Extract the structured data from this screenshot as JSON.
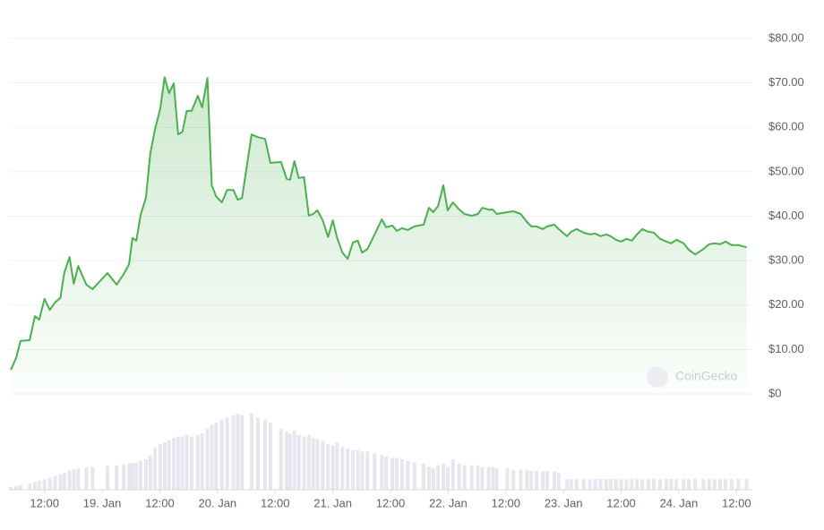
{
  "chart_data": {
    "type": "area",
    "watermark": "CoinGecko",
    "x": [
      5.0,
      6.1,
      7.0,
      8.9,
      10.0,
      10.9,
      12.0,
      13.1,
      14.2,
      15.3,
      16.1,
      17.2,
      18.1,
      19.0,
      20.7,
      22.0,
      25.1,
      27.0,
      28.5,
      29.6,
      30.3,
      31.1,
      32.0,
      33.1,
      34.0,
      35.0,
      36.1,
      37.0,
      37.9,
      38.9,
      39.8,
      40.7,
      41.6,
      42.6,
      43.9,
      44.8,
      45.9,
      46.8,
      47.7,
      48.9,
      50.0,
      51.3,
      52.2,
      53.1,
      55.1,
      56.4,
      57.9,
      59.0,
      61.2,
      62.4,
      63.1,
      64.0,
      64.9,
      66.0,
      67.0,
      67.9,
      68.8,
      69.9,
      71.0,
      72.0,
      72.9,
      74.0,
      75.1,
      76.2,
      77.2,
      78.1,
      79.2,
      80.7,
      82.2,
      83.1,
      84.4,
      85.3,
      86.4,
      87.6,
      89.0,
      90.9,
      92.0,
      92.9,
      93.9,
      95.0,
      95.9,
      97.0,
      98.3,
      99.4,
      100.9,
      102.2,
      103.1,
      104.4,
      105.3,
      106.1,
      108.3,
      109.6,
      111.1,
      112.4,
      113.3,
      114.4,
      115.7,
      116.6,
      118.1,
      119.0,
      120.7,
      121.6,
      122.7,
      124.2,
      125.5,
      126.6,
      127.7,
      128.9,
      129.8,
      130.9,
      132.0,
      133.1,
      134.2,
      135.3,
      136.4,
      137.7,
      138.8,
      140.1,
      141.4,
      142.4,
      143.5,
      145.0,
      146.1,
      147.4,
      149.1,
      150.3,
      151.4,
      152.6,
      153.7,
      155.0,
      156.4,
      158.1
    ],
    "series": [
      {
        "name": "Price",
        "color": "#4caf50",
        "values": [
          5.4,
          8.1,
          11.9,
          12.1,
          17.5,
          16.7,
          21.4,
          18.9,
          20.6,
          21.6,
          27.2,
          30.8,
          24.8,
          28.8,
          24.6,
          23.6,
          27.2,
          24.6,
          27.0,
          29.2,
          35.1,
          34.5,
          40.3,
          44.1,
          54.0,
          59.6,
          64.3,
          71.3,
          67.7,
          69.9,
          58.4,
          59.0,
          63.7,
          63.7,
          67.1,
          64.5,
          71.1,
          47.0,
          44.5,
          43.1,
          45.9,
          45.9,
          43.7,
          44.1,
          58.4,
          57.8,
          57.4,
          52.0,
          52.2,
          48.4,
          48.2,
          52.4,
          48.6,
          48.8,
          40.1,
          40.5,
          41.3,
          39.1,
          35.3,
          39.1,
          35.1,
          31.8,
          30.4,
          34.1,
          34.5,
          31.8,
          32.6,
          35.9,
          39.3,
          37.5,
          37.9,
          36.7,
          37.3,
          36.9,
          37.7,
          38.1,
          41.9,
          40.9,
          42.3,
          47.0,
          41.3,
          43.1,
          41.5,
          40.5,
          40.1,
          40.5,
          41.9,
          41.5,
          41.5,
          40.5,
          40.9,
          41.1,
          40.5,
          38.7,
          37.7,
          37.7,
          37.1,
          37.7,
          38.1,
          37.1,
          35.5,
          36.5,
          37.1,
          36.3,
          35.9,
          36.1,
          35.5,
          35.9,
          35.5,
          34.7,
          34.3,
          34.9,
          34.5,
          35.9,
          37.1,
          36.5,
          36.3,
          34.9,
          34.3,
          33.9,
          34.7,
          33.9,
          32.4,
          31.4,
          32.6,
          33.7,
          33.9,
          33.7,
          34.3,
          33.5,
          33.5,
          33.0
        ]
      },
      {
        "name": "Volume",
        "color": "#e6e7ee",
        "axis": "y2",
        "values": [
          4,
          5,
          6,
          8,
          10,
          12,
          14,
          16,
          18,
          20,
          22,
          25,
          27,
          28,
          29,
          30,
          31,
          32,
          33,
          34,
          35,
          36,
          38,
          40,
          45,
          55,
          60,
          62,
          65,
          68,
          70,
          70,
          72,
          70,
          72,
          74,
          80,
          85,
          88,
          92,
          95,
          98,
          100,
          98,
          100,
          95,
          92,
          88,
          80,
          76,
          74,
          78,
          72,
          70,
          72,
          68,
          66,
          64,
          60,
          58,
          62,
          56,
          54,
          52,
          52,
          50,
          50,
          48,
          46,
          44,
          42,
          42,
          40,
          38,
          36,
          34,
          30,
          28,
          32,
          34,
          30,
          40,
          34,
          32,
          32,
          32,
          30,
          30,
          30,
          28,
          28,
          26,
          26,
          26,
          25,
          25,
          24,
          24,
          24,
          22,
          14,
          14,
          14,
          14,
          14,
          14,
          14,
          14,
          14,
          14,
          14,
          14,
          14,
          14,
          14,
          14,
          14,
          14,
          14,
          14,
          14,
          14,
          14,
          14,
          14,
          14,
          14,
          14,
          14,
          14,
          14,
          14
        ]
      }
    ],
    "xlim": [
      4.6,
      159.3
    ],
    "xticks": [
      {
        "value": 12,
        "label": "12:00"
      },
      {
        "value": 24,
        "label": "19. Jan"
      },
      {
        "value": 36,
        "label": "12:00"
      },
      {
        "value": 48,
        "label": "20. Jan"
      },
      {
        "value": 60,
        "label": "12:00"
      },
      {
        "value": 72,
        "label": "21. Jan"
      },
      {
        "value": 84,
        "label": "12:00"
      },
      {
        "value": 96,
        "label": "22. Jan"
      },
      {
        "value": 108,
        "label": "12:00"
      },
      {
        "value": 120,
        "label": "23. Jan"
      },
      {
        "value": 132,
        "label": "12:00"
      },
      {
        "value": 144,
        "label": "24. Jan"
      },
      {
        "value": 156,
        "label": "12:00"
      }
    ],
    "ylim": [
      0,
      80
    ],
    "yticks": [
      {
        "value": 0,
        "label": "$0"
      },
      {
        "value": 10,
        "label": "$10.00"
      },
      {
        "value": 20,
        "label": "$20.00"
      },
      {
        "value": 30,
        "label": "$30.00"
      },
      {
        "value": 40,
        "label": "$40.00"
      },
      {
        "value": 50,
        "label": "$50.00"
      },
      {
        "value": 60,
        "label": "$60.00"
      },
      {
        "value": 70,
        "label": "$70.00"
      },
      {
        "value": 80,
        "label": "$80.00"
      }
    ],
    "y2lim": [
      0,
      100
    ],
    "grid": true
  }
}
